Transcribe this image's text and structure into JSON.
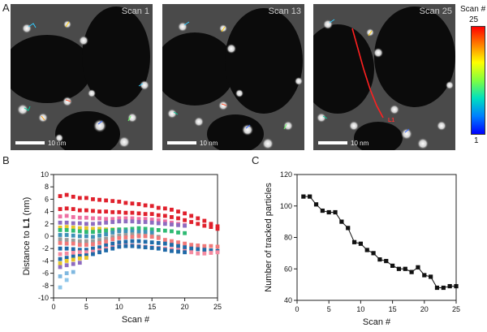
{
  "panel_a": {
    "letter": "A",
    "images": [
      {
        "scan_label": "Scan 1",
        "scale_text": "10 nm"
      },
      {
        "scan_label": "Scan 13",
        "scale_text": "10 nm"
      },
      {
        "scan_label": "Scan 25",
        "scale_text": "10 nm"
      }
    ],
    "line_label": "L1",
    "colorbar": {
      "title": "Scan #",
      "max_label": "25",
      "min_label": "1"
    }
  },
  "panel_b": {
    "letter": "B"
  },
  "panel_c": {
    "letter": "C"
  },
  "chart_data": [
    {
      "type": "scatter",
      "title": "",
      "xlabel": "Scan #",
      "ylabel_prefix": "Distance to ",
      "ylabel_bold": "L1",
      "ylabel_suffix": " (nm)",
      "xlim": [
        0,
        25
      ],
      "ylim": [
        -10,
        10
      ],
      "xticks": [
        0,
        5,
        10,
        15,
        20,
        25
      ],
      "yticks": [
        -10,
        -8,
        -6,
        -4,
        -2,
        0,
        2,
        4,
        6,
        8,
        10
      ],
      "series": [
        {
          "name": "red-top",
          "color": "#e0202c",
          "x": [
            1,
            2,
            3,
            4,
            5,
            6,
            7,
            8,
            9,
            10,
            11,
            12,
            13,
            14,
            15,
            16,
            17,
            18,
            19,
            20,
            21,
            22,
            23,
            24,
            25
          ],
          "values": [
            6.5,
            6.7,
            6.4,
            6.2,
            6.2,
            6.0,
            5.9,
            5.8,
            5.7,
            5.6,
            5.4,
            5.3,
            5.2,
            5.0,
            4.9,
            4.6,
            4.5,
            4.3,
            4.0,
            3.7,
            3.3,
            2.9,
            2.5,
            2.0,
            1.6
          ]
        },
        {
          "name": "red-second",
          "color": "#e0202c",
          "x": [
            1,
            2,
            3,
            4,
            5,
            6,
            7,
            8,
            9,
            10,
            11,
            12,
            13,
            14,
            15,
            16,
            17,
            18,
            19,
            20,
            21,
            22,
            23,
            24,
            25
          ],
          "values": [
            4.4,
            4.5,
            4.4,
            4.2,
            4.2,
            4.1,
            4.0,
            4.0,
            3.9,
            3.9,
            3.8,
            3.8,
            3.7,
            3.6,
            3.6,
            3.4,
            3.3,
            3.1,
            2.9,
            2.6,
            2.3,
            2.0,
            1.7,
            1.5,
            1.2
          ]
        },
        {
          "name": "pink",
          "color": "#ee6fa2",
          "x": [
            1,
            2,
            3,
            4,
            5,
            6,
            7,
            8,
            9,
            10,
            11,
            12,
            13,
            14,
            15,
            16,
            17,
            18,
            19,
            20
          ],
          "values": [
            3.2,
            3.3,
            3.1,
            3.0,
            3.0,
            2.9,
            2.9,
            2.8,
            2.8,
            2.9,
            2.9,
            2.9,
            2.8,
            2.8,
            2.7,
            2.6,
            2.4,
            2.2,
            2.0,
            1.8
          ]
        },
        {
          "name": "purple",
          "color": "#8e6cc0",
          "x": [
            1,
            2,
            3,
            4,
            5,
            6,
            7,
            8,
            9,
            10,
            11,
            12,
            13,
            14,
            15,
            16,
            17,
            18,
            19,
            20
          ],
          "values": [
            2.2,
            2.2,
            2.1,
            2.1,
            2.0,
            2.0,
            2.1,
            2.2,
            2.3,
            2.4,
            2.4,
            2.4,
            2.3,
            2.3,
            2.2,
            2.1,
            2.0,
            1.9,
            1.8,
            1.7
          ]
        },
        {
          "name": "yellow",
          "color": "#e7c52a",
          "x": [
            1,
            2,
            3,
            4,
            5,
            6,
            7,
            8,
            9,
            10
          ],
          "values": [
            1.4,
            1.5,
            1.4,
            1.3,
            1.3,
            1.2,
            1.2,
            1.1,
            1.1,
            1.0
          ]
        },
        {
          "name": "green",
          "color": "#2fba73",
          "x": [
            1,
            2,
            3,
            4,
            5,
            6,
            7,
            8,
            9,
            10,
            11,
            12,
            13,
            14,
            15,
            16,
            17,
            18,
            19,
            20
          ],
          "values": [
            1.0,
            1.0,
            0.9,
            0.8,
            0.7,
            0.7,
            0.8,
            0.9,
            1.0,
            1.1,
            1.1,
            1.2,
            1.3,
            1.2,
            1.1,
            1.0,
            0.9,
            0.8,
            0.6,
            0.5
          ]
        },
        {
          "name": "teal",
          "color": "#3e92b7",
          "x": [
            1,
            2,
            3,
            4,
            5,
            6,
            7,
            8,
            9,
            10,
            11,
            12,
            13,
            14,
            15
          ],
          "values": [
            0.2,
            0.2,
            0.1,
            0.0,
            0.0,
            -0.1,
            0.1,
            0.3,
            0.6,
            0.8,
            0.8,
            0.8,
            0.7,
            0.7,
            0.6
          ]
        },
        {
          "name": "gray",
          "color": "#9a9a9a",
          "x": [
            1,
            2,
            3,
            4,
            5,
            6,
            7,
            8,
            9,
            10,
            11,
            12,
            13,
            14,
            15,
            16
          ],
          "values": [
            -0.5,
            -0.6,
            -0.7,
            -0.8,
            -0.8,
            -0.8,
            -0.6,
            -0.4,
            -0.1,
            0.1,
            0.2,
            0.3,
            0.2,
            0.1,
            0.0,
            -0.1
          ]
        },
        {
          "name": "salmon",
          "color": "#f07a7a",
          "x": [
            1,
            2,
            3,
            4,
            5,
            6,
            7,
            8,
            9,
            10,
            11,
            12,
            13,
            14,
            15,
            16,
            17,
            18,
            19,
            20,
            21,
            22,
            23,
            24,
            25
          ],
          "values": [
            -1.1,
            -1.2,
            -1.2,
            -1.4,
            -1.4,
            -1.3,
            -1.1,
            -0.9,
            -0.5,
            -0.3,
            -0.2,
            -0.1,
            0.0,
            0.0,
            -0.1,
            -0.3,
            -0.6,
            -0.8,
            -1.0,
            -1.2,
            -1.4,
            -1.5,
            -1.6,
            -1.6,
            -1.7
          ]
        },
        {
          "name": "blue-mid",
          "color": "#1f6aa8",
          "x": [
            1,
            2,
            3,
            4,
            5,
            6,
            7,
            8,
            9,
            10,
            11,
            12,
            13,
            14,
            15,
            16,
            17,
            18,
            19,
            20,
            21,
            22,
            23,
            24,
            25
          ],
          "values": [
            -2.0,
            -2.0,
            -2.1,
            -2.2,
            -2.2,
            -2.0,
            -1.8,
            -1.5,
            -1.2,
            -1.0,
            -0.9,
            -0.8,
            -0.8,
            -0.9,
            -1.0,
            -1.1,
            -1.2,
            -1.4,
            -1.6,
            -1.8,
            -2.0,
            -2.1,
            -2.2,
            -2.3,
            -2.4
          ]
        },
        {
          "name": "pink-low",
          "color": "#f58aa0",
          "x": [
            1,
            2,
            3,
            4,
            5,
            6,
            7,
            8,
            9,
            10,
            11,
            12,
            13,
            14,
            15,
            16,
            17,
            18,
            19,
            20,
            21,
            22,
            23,
            24,
            25
          ],
          "values": [
            -2.9,
            -2.8,
            -2.7,
            -2.6,
            -2.6,
            -2.5,
            -2.3,
            -2.0,
            -1.8,
            -1.6,
            -1.5,
            -1.5,
            -1.6,
            -1.7,
            -1.8,
            -1.9,
            -2.0,
            -2.1,
            -2.2,
            -2.4,
            -2.6,
            -2.8,
            -2.8,
            -2.7,
            -2.6
          ]
        },
        {
          "name": "blue-low",
          "color": "#1f6aa8",
          "x": [
            1,
            2,
            3,
            4,
            5,
            6,
            7,
            8,
            9,
            10,
            11,
            12,
            13,
            14,
            15,
            16,
            17,
            18,
            19,
            20
          ],
          "values": [
            -3.7,
            -3.5,
            -3.3,
            -3.2,
            -3.1,
            -2.9,
            -2.6,
            -2.3,
            -2.0,
            -1.7,
            -1.6,
            -1.6,
            -1.7,
            -1.8,
            -1.9,
            -2.0,
            -2.2,
            -2.4,
            -2.5,
            -2.6
          ]
        },
        {
          "name": "yellow-low",
          "color": "#e7c52a",
          "x": [
            1,
            2,
            3,
            4,
            5
          ],
          "values": [
            -4.4,
            -4.0,
            -3.8,
            -3.6,
            -3.5
          ]
        },
        {
          "name": "purple-low",
          "color": "#8e6cc0",
          "x": [
            1,
            2,
            3,
            4
          ],
          "values": [
            -5.0,
            -4.7,
            -4.5,
            -4.3
          ]
        },
        {
          "name": "light-blue",
          "color": "#7fb8e0",
          "x": [
            1,
            2,
            3
          ],
          "values": [
            -6.5,
            -6.0,
            -5.8
          ]
        },
        {
          "name": "light-blue-bottom",
          "color": "#8ec6ea",
          "x": [
            1,
            2
          ],
          "values": [
            -8.3,
            -7.1
          ]
        }
      ]
    },
    {
      "type": "line",
      "title": "",
      "xlabel": "Scan #",
      "ylabel": "Number of tracked particles",
      "xlim": [
        0,
        25
      ],
      "ylim": [
        40,
        120
      ],
      "xticks": [
        0,
        5,
        10,
        15,
        20,
        25
      ],
      "yticks": [
        40,
        60,
        80,
        100,
        120
      ],
      "color": "#111111",
      "x": [
        1,
        2,
        3,
        4,
        5,
        6,
        7,
        8,
        9,
        10,
        11,
        12,
        13,
        14,
        15,
        16,
        17,
        18,
        19,
        20,
        21,
        22,
        23,
        24,
        25
      ],
      "values": [
        106,
        106,
        101,
        97,
        96,
        96,
        90,
        86,
        77,
        76,
        72,
        70,
        66,
        65,
        62,
        60,
        60,
        58,
        61,
        56,
        55,
        48,
        48,
        49,
        49
      ]
    }
  ]
}
